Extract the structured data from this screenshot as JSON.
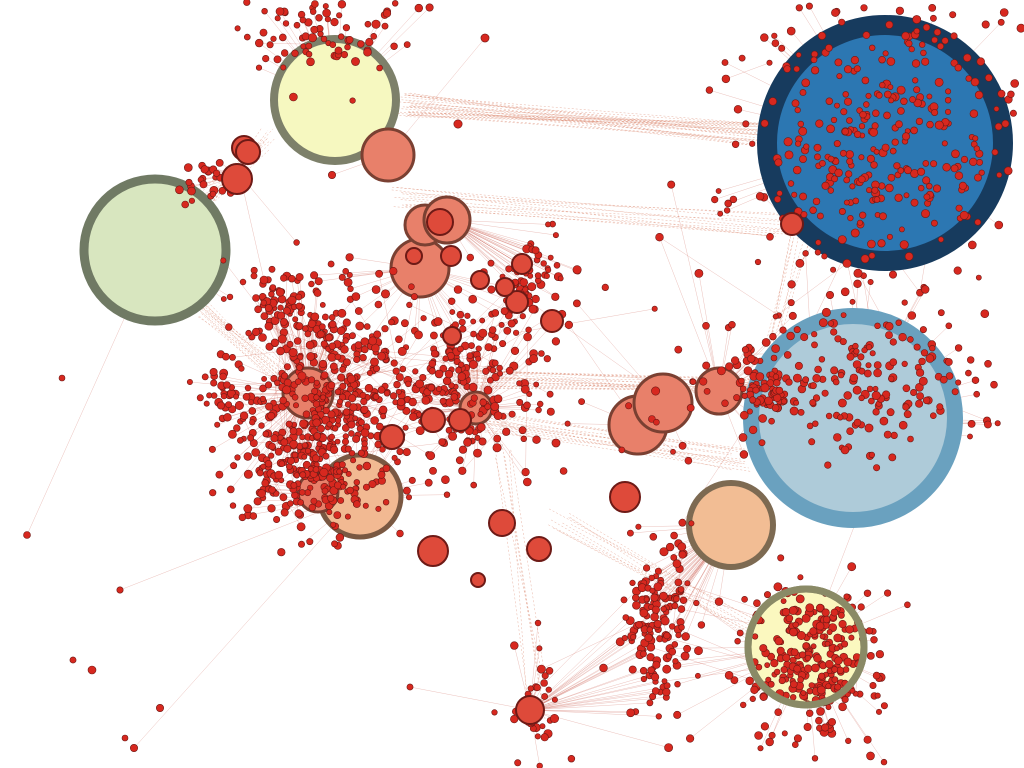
{
  "graph": {
    "palette": {
      "edge": "#c0392b",
      "edge_light": "#d98066",
      "node_fill": "#d7281f",
      "node_stroke": "#6d1a16",
      "medium_node_fill": "#e8806a",
      "medium_node_stroke": "#7a4032"
    },
    "clusters": [
      {
        "id": "pale-yellow-hub",
        "fill": "#f6f8c0",
        "ring": "#7d806a"
      },
      {
        "id": "pale-green-hub",
        "fill": "#d8e6bf",
        "ring": "#707a64"
      },
      {
        "id": "dark-blue-hub",
        "fill": "#2c77b2",
        "ring": "#173b5e"
      },
      {
        "id": "light-blue-hub",
        "fill": "#aecbd9",
        "ring": "#6aa1bf"
      },
      {
        "id": "peach-hub-left",
        "fill": "#f2b992",
        "ring": "#7a5842"
      },
      {
        "id": "peach-hub-right",
        "fill": "#f2bd94",
        "ring": "#7d6a52"
      },
      {
        "id": "yellow-hub-bottom",
        "fill": "#fbf8bf",
        "ring": "#8a8a66"
      }
    ]
  }
}
